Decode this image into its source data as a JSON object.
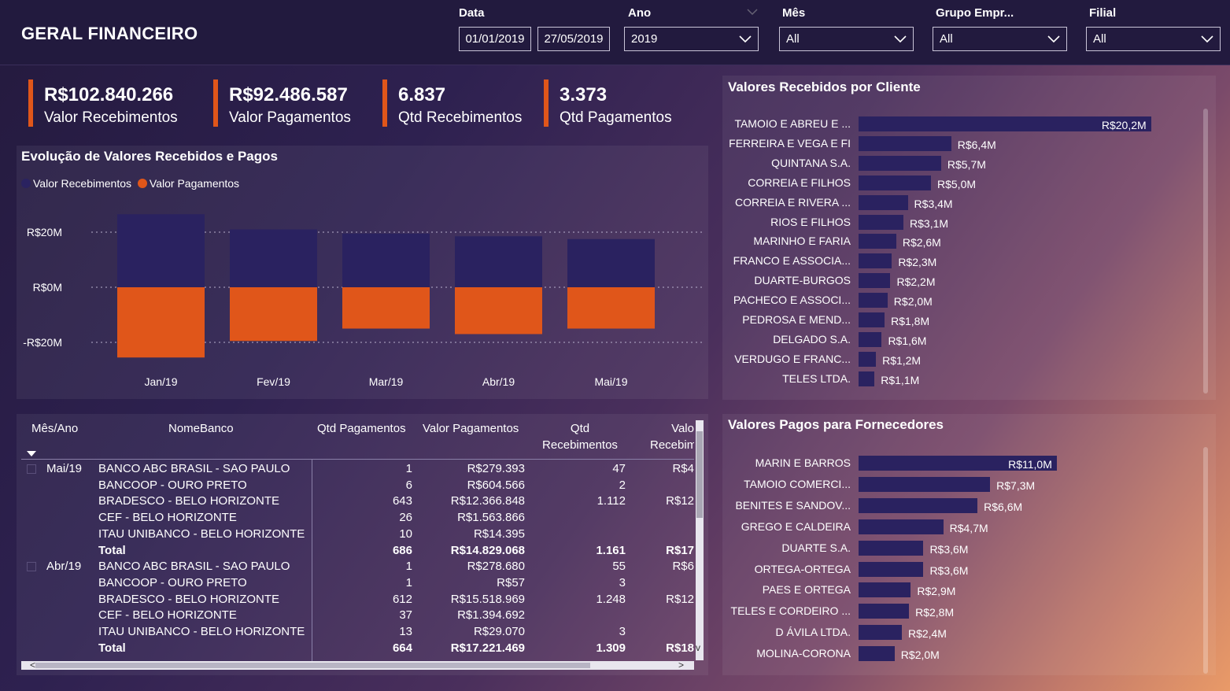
{
  "app_title": "GERAL FINANCEIRO",
  "filters": {
    "data": {
      "label": "Data",
      "start": "01/01/2019",
      "end": "27/05/2019"
    },
    "ano": {
      "label": "Ano",
      "value": "2019"
    },
    "mes": {
      "label": "Mês",
      "value": "All"
    },
    "grupo": {
      "label": "Grupo Empr...",
      "value": "All"
    },
    "filial": {
      "label": "Filial",
      "value": "All"
    }
  },
  "kpis": [
    {
      "value": "R$102.840.266",
      "label": "Valor Recebimentos"
    },
    {
      "value": "R$92.486.587",
      "label": "Valor Pagamentos"
    },
    {
      "value": "6.837",
      "label": "Qtd Recebimentos"
    },
    {
      "value": "3.373",
      "label": "Qtd Pagamentos"
    }
  ],
  "colors": {
    "recebimentos": "#2a2260",
    "pagamentos": "#e0561a",
    "accent": "#e0561a"
  },
  "evolution_chart": {
    "title": "Evolução de Valores Recebidos e Pagos",
    "legend": [
      "Valor Recebimentos",
      "Valor Pagamentos"
    ],
    "ytick_labels": [
      "R$20M",
      "R$0M",
      "-R$20M"
    ]
  },
  "clientes_chart": {
    "title": "Valores Recebidos por Cliente"
  },
  "fornecedores_chart": {
    "title": "Valores Pagos para Fornecedores"
  },
  "chart_data": [
    {
      "type": "bar",
      "title": "Evolução de Valores Recebidos e Pagos",
      "categories": [
        "Jan/19",
        "Fev/19",
        "Mar/19",
        "Abr/19",
        "Mai/19"
      ],
      "series": [
        {
          "name": "Valor Recebimentos",
          "values": [
            26.5,
            21,
            19.5,
            18.5,
            17.5
          ]
        },
        {
          "name": "Valor Pagamentos",
          "values": [
            -25.5,
            -19.5,
            -15,
            -17,
            -15
          ]
        }
      ],
      "ylim": [
        -26,
        27
      ],
      "yticks": [
        20,
        0,
        -20
      ],
      "grid": true,
      "legend": "top-left"
    },
    {
      "type": "bar",
      "orientation": "horizontal",
      "title": "Valores Recebidos por Cliente",
      "categories": [
        "TAMOIO E ABREU E ...",
        "FERREIRA E VEGA E FI",
        "QUINTANA S.A.",
        "CORREIA E FILHOS",
        "CORREIA E RIVERA ...",
        "RIOS E FILHOS",
        "MARINHO E FARIA",
        "FRANCO E ASSOCIA...",
        "DUARTE-BURGOS",
        "PACHECO E ASSOCI...",
        "PEDROSA E MEND...",
        "DELGADO S.A.",
        "VERDUGO E FRANC...",
        "TELES LTDA."
      ],
      "values": [
        20.2,
        6.4,
        5.7,
        5.0,
        3.4,
        3.1,
        2.6,
        2.3,
        2.2,
        2.0,
        1.8,
        1.6,
        1.2,
        1.1
      ],
      "value_labels": [
        "R$20,2M",
        "R$6,4M",
        "R$5,7M",
        "R$5,0M",
        "R$3,4M",
        "R$3,1M",
        "R$2,6M",
        "R$2,3M",
        "R$2,2M",
        "R$2,0M",
        "R$1,8M",
        "R$1,6M",
        "R$1,2M",
        "R$1,1M"
      ]
    },
    {
      "type": "bar",
      "orientation": "horizontal",
      "title": "Valores Pagos para Fornecedores",
      "categories": [
        "MARIN E BARROS",
        "TAMOIO COMERCI...",
        "BENITES E SANDOV...",
        "GREGO E CALDEIRA",
        "DUARTE S.A.",
        "ORTEGA-ORTEGA",
        "PAES E ORTEGA",
        "TELES E CORDEIRO ...",
        "D ÁVILA LTDA.",
        "MOLINA-CORONA"
      ],
      "values": [
        11.0,
        7.3,
        6.6,
        4.7,
        3.6,
        3.6,
        2.9,
        2.8,
        2.4,
        2.0
      ],
      "value_labels": [
        "R$11,0M",
        "R$7,3M",
        "R$6,6M",
        "R$4,7M",
        "R$3,6M",
        "R$3,6M",
        "R$2,9M",
        "R$2,8M",
        "R$2,4M",
        "R$2,0M"
      ]
    }
  ],
  "table": {
    "headers": [
      "Mês/Ano",
      "NomeBanco",
      "Qtd Pagamentos",
      "Valor Pagamentos",
      "Qtd\nRecebimentos",
      "Valo\nRecebim"
    ],
    "groups": [
      {
        "month": "Mai/19",
        "rows": [
          [
            "BANCO ABC BRASIL - SAO PAULO",
            "1",
            "R$279.393",
            "47",
            "R$4"
          ],
          [
            "BANCOOP - OURO PRETO",
            "6",
            "R$604.566",
            "2",
            ""
          ],
          [
            "BRADESCO - BELO HORIZONTE",
            "643",
            "R$12.366.848",
            "1.112",
            "R$12"
          ],
          [
            "CEF - BELO HORIZONTE",
            "26",
            "R$1.563.866",
            "",
            ""
          ],
          [
            "ITAU UNIBANCO - BELO HORIZONTE",
            "10",
            "R$14.395",
            "",
            ""
          ]
        ],
        "total": [
          "Total",
          "686",
          "R$14.829.068",
          "1.161",
          "R$17"
        ]
      },
      {
        "month": "Abr/19",
        "rows": [
          [
            "BANCO ABC BRASIL - SAO PAULO",
            "1",
            "R$278.680",
            "55",
            "R$6"
          ],
          [
            "BANCOOP - OURO PRETO",
            "1",
            "R$57",
            "3",
            ""
          ],
          [
            "BRADESCO - BELO HORIZONTE",
            "612",
            "R$15.518.969",
            "1.248",
            "R$12"
          ],
          [
            "CEF - BELO HORIZONTE",
            "37",
            "R$1.394.692",
            "",
            ""
          ],
          [
            "ITAU UNIBANCO - BELO HORIZONTE",
            "13",
            "R$29.070",
            "3",
            ""
          ]
        ],
        "total": [
          "Total",
          "664",
          "R$17.221.469",
          "1.309",
          "R$18"
        ]
      }
    ]
  }
}
